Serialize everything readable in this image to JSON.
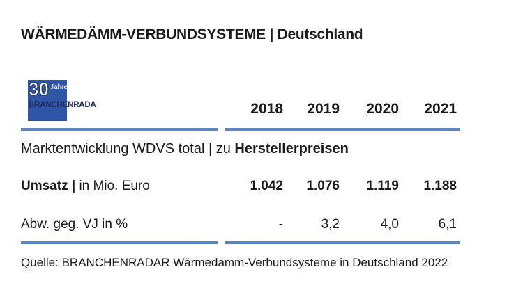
{
  "title": "WÄRMEDÄMM-VERBUNDSYSTEME | Deutschland",
  "logo": {
    "years_number": "30",
    "years_word": "Jahre",
    "brand": "BRANCHENRADAR",
    "colors": {
      "blue": "#2f56a6",
      "dark": "#1d2a5c"
    }
  },
  "section": {
    "title_prefix": "Marktentwicklung WDVS total | zu ",
    "title_emphasis": "Herstellerpreisen"
  },
  "chart_data": {
    "type": "table",
    "columns": [
      "2018",
      "2019",
      "2020",
      "2021"
    ],
    "rows": [
      {
        "label_bold": "Umsatz |",
        "label_rest": " in Mio. Euro",
        "values": [
          "1.042",
          "1.076",
          "1.119",
          "1.188"
        ]
      },
      {
        "label": "Abw. geg. VJ in %",
        "values": [
          "-",
          "3,2",
          "4,0",
          "6,1"
        ]
      }
    ]
  },
  "source": "Quelle: BRANCHENRADAR Wärmedämm-Verbundsysteme in Deutschland 2022",
  "colors": {
    "rule": "#5d86c1"
  }
}
